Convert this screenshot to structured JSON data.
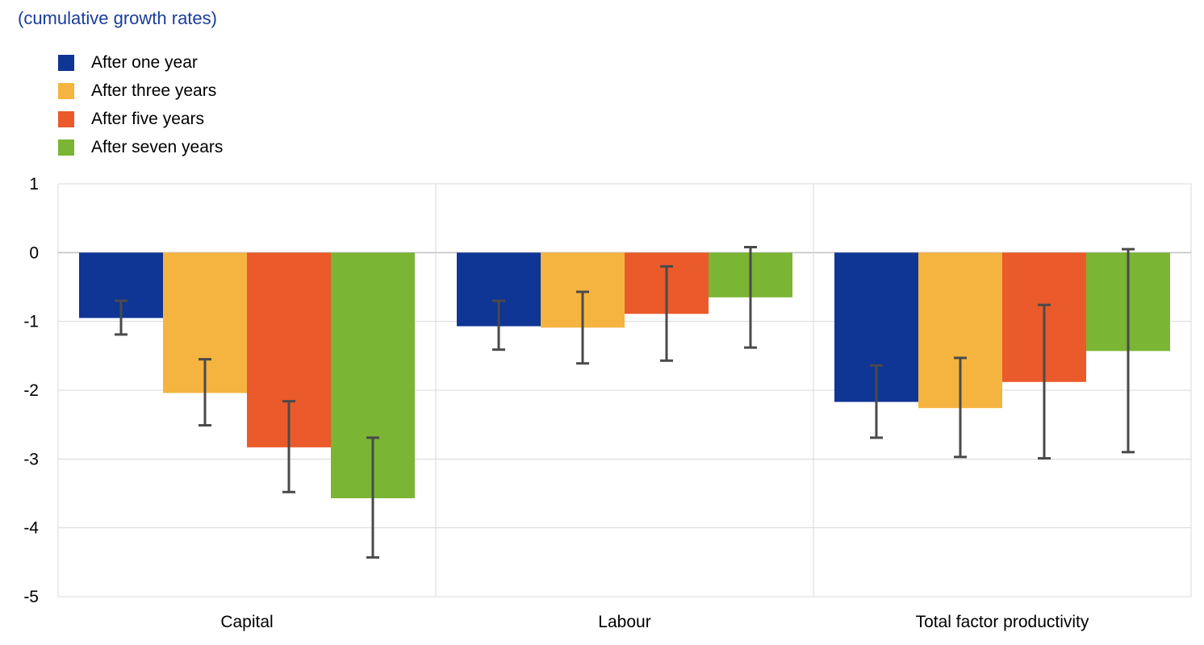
{
  "chart_data": {
    "type": "bar",
    "subtitle": "(cumulative growth rates)",
    "categories": [
      "Capital",
      "Labour",
      "Total factor productivity"
    ],
    "series": [
      {
        "name": "After one year",
        "color": "#0f3595",
        "values": [
          -0.95,
          -1.07,
          -2.17
        ],
        "err_low": [
          -1.19,
          -1.41,
          -2.69
        ],
        "err_high": [
          -0.7,
          -0.7,
          -1.64
        ]
      },
      {
        "name": "After three years",
        "color": "#f5b440",
        "values": [
          -2.04,
          -1.09,
          -2.26
        ],
        "err_low": [
          -2.51,
          -1.61,
          -2.97
        ],
        "err_high": [
          -1.55,
          -0.57,
          -1.53
        ]
      },
      {
        "name": "After five years",
        "color": "#ea5a2a",
        "values": [
          -2.83,
          -0.89,
          -1.88
        ],
        "err_low": [
          -3.48,
          -1.57,
          -2.99
        ],
        "err_high": [
          -2.16,
          -0.2,
          -0.76
        ]
      },
      {
        "name": "After seven years",
        "color": "#7ab534",
        "values": [
          -3.57,
          -0.65,
          -1.43
        ],
        "err_low": [
          -4.43,
          -1.38,
          -2.9
        ],
        "err_high": [
          -2.69,
          0.08,
          0.05
        ]
      }
    ],
    "ylim": [
      -5,
      1
    ],
    "yticks": [
      1,
      0,
      -1,
      -2,
      -3,
      -4,
      -5
    ],
    "grid": true,
    "legend_position": "top-left",
    "error_bar_color": "#4a4a4a"
  }
}
